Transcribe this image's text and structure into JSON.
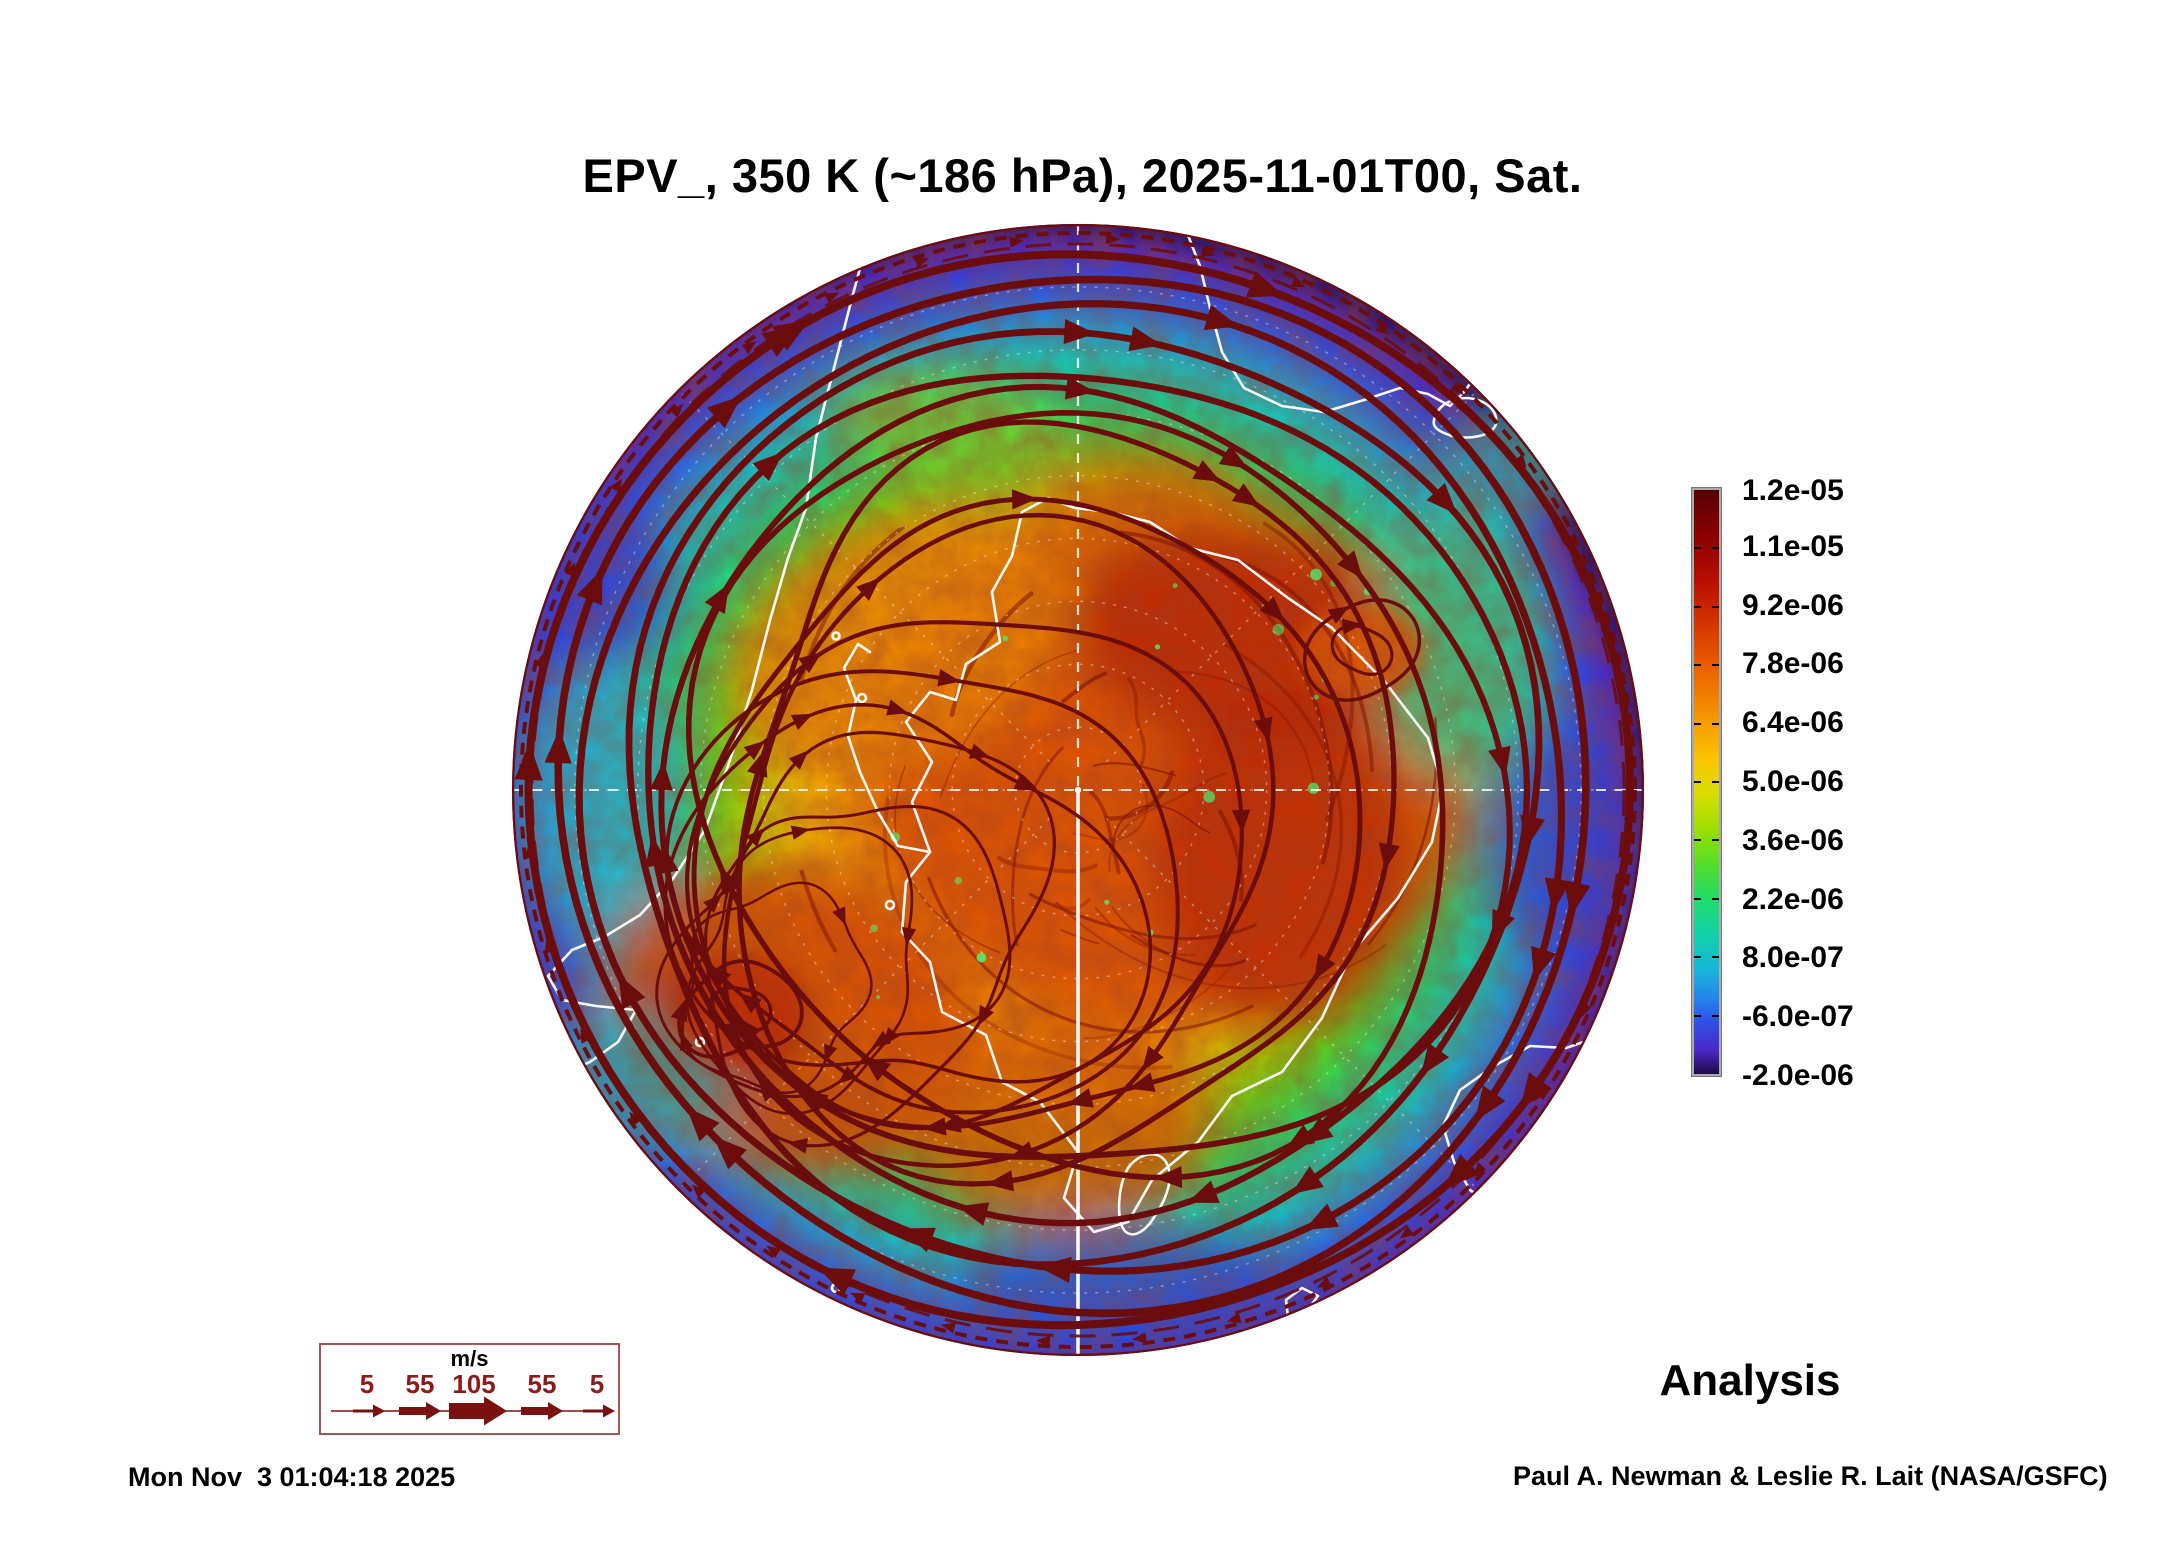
{
  "title": "EPV_, 350 K (~186 hPa), 2025-11-01T00, Sat.",
  "colorbar": {
    "labels": [
      "1.2e-05",
      "1.1e-05",
      "9.2e-06",
      "7.8e-06",
      "6.4e-06",
      "5.0e-06",
      "3.6e-06",
      "2.2e-06",
      "8.0e-07",
      "-6.0e-07",
      "-2.0e-06"
    ]
  },
  "wind_legend": {
    "units": "m/s",
    "speeds": [
      "5",
      "55",
      "105",
      "55",
      "5"
    ]
  },
  "annotation_label": "Analysis",
  "generated_timestamp": "Mon Nov  3 01:04:18 2025",
  "credit": "Paul A. Newman & Leslie R. Lait (NASA/GSFC)",
  "colors": {
    "streamline": "#6b0d0d",
    "filament": "#7a1000",
    "legend_accent": "#8f1a1a",
    "coastline": "#ffffff",
    "background": "#ffffff"
  }
}
